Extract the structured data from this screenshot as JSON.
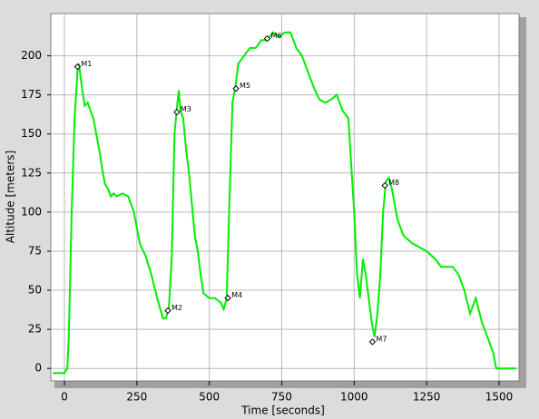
{
  "chart_data": {
    "type": "line",
    "x_label": "Time [seconds]",
    "y_label": "Altitude [meters]",
    "xlim": [
      -47,
      1569
    ],
    "ylim": [
      -8,
      227
    ],
    "xticks": [
      0,
      250,
      500,
      750,
      1000,
      1250,
      1500
    ],
    "yticks": [
      0,
      25,
      50,
      75,
      100,
      125,
      150,
      175,
      200
    ],
    "grid": true,
    "series": [
      {
        "color": "#00ee00",
        "x": [
          -40,
          0,
          10,
          15,
          25,
          35,
          45,
          50,
          60,
          70,
          80,
          90,
          100,
          110,
          120,
          130,
          140,
          150,
          160,
          170,
          180,
          200,
          220,
          240,
          260,
          280,
          300,
          320,
          340,
          350,
          360,
          370,
          380,
          390,
          395,
          400,
          410,
          420,
          430,
          440,
          450,
          460,
          470,
          480,
          500,
          520,
          540,
          550,
          560,
          570,
          580,
          590,
          600,
          620,
          640,
          660,
          680,
          700,
          720,
          740,
          760,
          780,
          800,
          820,
          840,
          860,
          880,
          900,
          920,
          940,
          960,
          980,
          1000,
          1010,
          1020,
          1030,
          1040,
          1050,
          1060,
          1070,
          1080,
          1090,
          1100,
          1110,
          1120,
          1130,
          1150,
          1170,
          1200,
          1250,
          1280,
          1300,
          1320,
          1340,
          1360,
          1380,
          1400,
          1420,
          1440,
          1460,
          1480,
          1490,
          1500,
          1560
        ],
        "values": [
          -3,
          -3,
          0,
          20,
          100,
          160,
          190,
          195,
          180,
          168,
          170,
          165,
          160,
          150,
          140,
          128,
          118,
          115,
          110,
          112,
          110,
          112,
          110,
          100,
          80,
          72,
          60,
          45,
          32,
          32,
          38,
          70,
          150,
          170,
          178,
          165,
          160,
          140,
          125,
          105,
          85,
          75,
          60,
          48,
          45,
          45,
          42,
          38,
          45,
          110,
          170,
          180,
          195,
          200,
          205,
          205,
          210,
          210,
          215,
          212,
          215,
          215,
          205,
          200,
          190,
          180,
          172,
          170,
          172,
          175,
          165,
          160,
          100,
          60,
          45,
          70,
          60,
          45,
          30,
          20,
          35,
          60,
          100,
          120,
          122,
          115,
          95,
          85,
          80,
          75,
          70,
          65,
          65,
          65,
          60,
          50,
          35,
          45,
          30,
          20,
          10,
          0,
          0,
          0
        ]
      }
    ],
    "markers": [
      {
        "label": "M1",
        "x": 45,
        "y": 193
      },
      {
        "label": "M2",
        "x": 357,
        "y": 37
      },
      {
        "label": "M3",
        "x": 388,
        "y": 164
      },
      {
        "label": "M4",
        "x": 564,
        "y": 45
      },
      {
        "label": "M5",
        "x": 592,
        "y": 179
      },
      {
        "label": "M6",
        "x": 700,
        "y": 211
      },
      {
        "label": "M7",
        "x": 1063,
        "y": 17
      },
      {
        "label": "M8",
        "x": 1106,
        "y": 117
      }
    ]
  }
}
